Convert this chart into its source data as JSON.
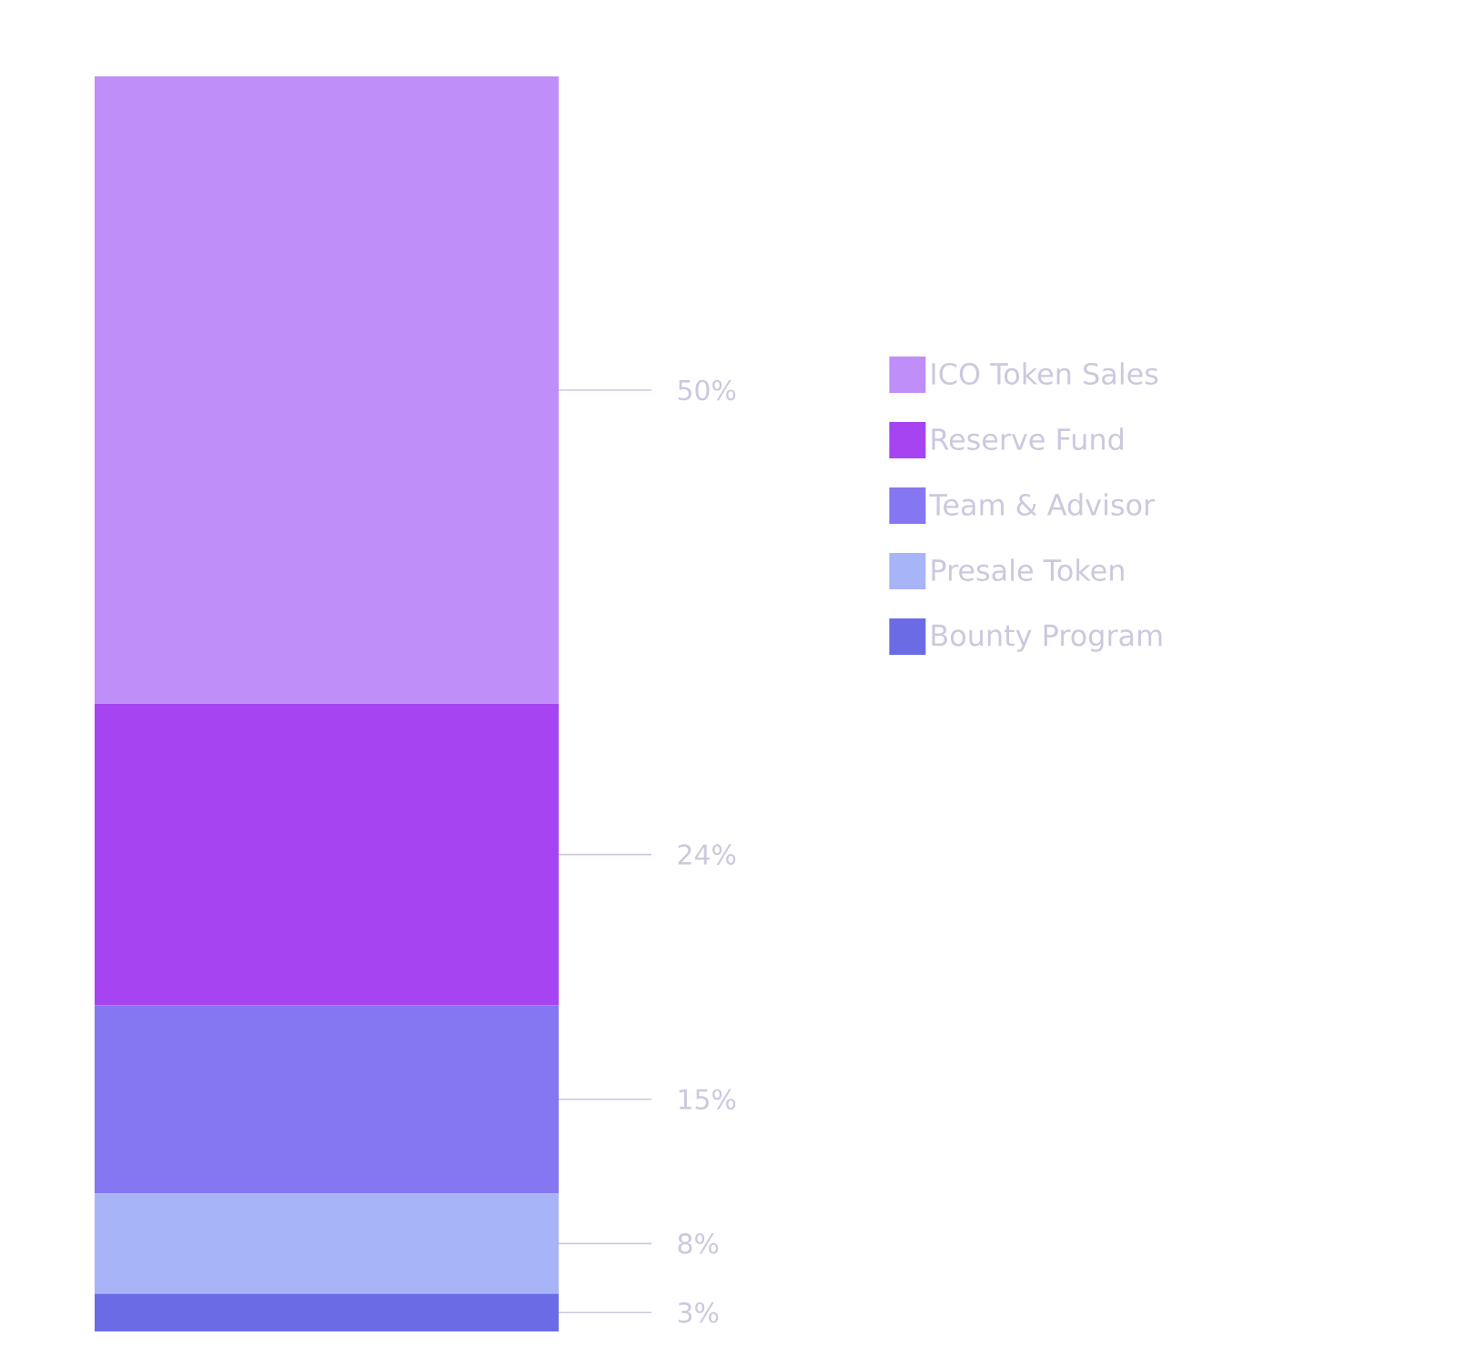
{
  "chart_data": {
    "type": "bar",
    "stacked": true,
    "categories": [
      null
    ],
    "legend": "right",
    "series": [
      {
        "name": "Bounty Program",
        "color": "#6b6be6",
        "values": [
          3
        ],
        "value_labels": [
          "3%"
        ]
      },
      {
        "name": "Presale Token",
        "color": "#a7b4f7",
        "values": [
          8
        ],
        "value_labels": [
          "8%"
        ]
      },
      {
        "name": "Team & Advisor",
        "color": "#8576f2",
        "values": [
          15
        ],
        "value_labels": [
          "15%"
        ]
      },
      {
        "name": "Reserve Fund",
        "color": "#a644f2",
        "values": [
          24
        ],
        "value_labels": [
          "24%"
        ]
      },
      {
        "name": "ICO Token Sales",
        "color": "#c08ef8",
        "values": [
          50
        ],
        "value_labels": [
          "50%"
        ]
      }
    ]
  }
}
